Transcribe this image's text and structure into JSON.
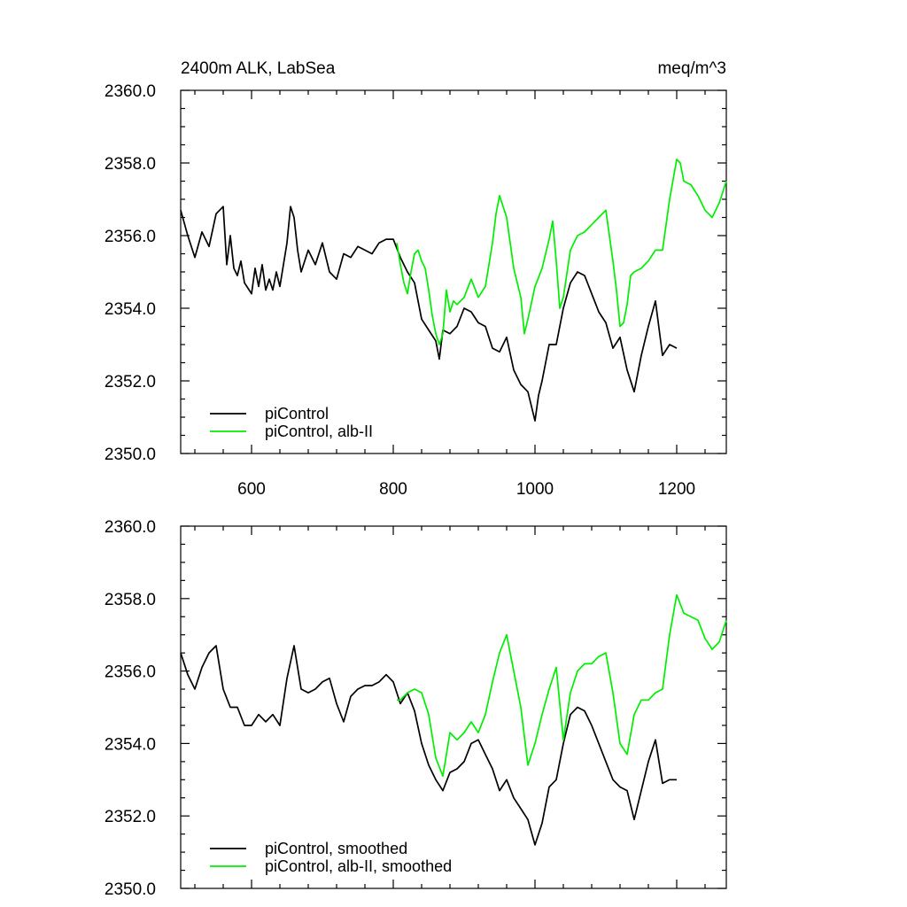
{
  "chart_data": [
    {
      "type": "line",
      "title_left": "2400m ALK, LabSea",
      "title_right": "meq/m^3",
      "xlim": [
        500,
        1270
      ],
      "ylim": [
        2350,
        2360
      ],
      "xticks": [
        600,
        800,
        1000,
        1200
      ],
      "xtick_labels": [
        "600",
        "800",
        "1000",
        "1200"
      ],
      "yticks": [
        2350,
        2352,
        2354,
        2356,
        2358,
        2360
      ],
      "ytick_labels": [
        "2350.0",
        "2352.0",
        "2354.0",
        "2356.0",
        "2358.0",
        "2360.0"
      ],
      "grid": false,
      "legend_position": "bottom-left",
      "series": [
        {
          "name": "piControl",
          "color": "#000000",
          "x": [
            500,
            510,
            520,
            530,
            540,
            550,
            560,
            565,
            570,
            575,
            580,
            585,
            590,
            600,
            605,
            610,
            615,
            620,
            625,
            630,
            635,
            640,
            650,
            655,
            660,
            665,
            670,
            680,
            690,
            700,
            710,
            720,
            730,
            740,
            750,
            760,
            770,
            780,
            790,
            800,
            810,
            820,
            830,
            840,
            850,
            860,
            865,
            870,
            880,
            890,
            900,
            910,
            920,
            930,
            940,
            950,
            960,
            970,
            980,
            990,
            1000,
            1005,
            1010,
            1020,
            1030,
            1040,
            1050,
            1060,
            1070,
            1080,
            1090,
            1100,
            1110,
            1120,
            1130,
            1140,
            1150,
            1160,
            1170,
            1180,
            1190,
            1200
          ],
          "values": [
            2356.7,
            2356.0,
            2355.4,
            2356.1,
            2355.7,
            2356.6,
            2356.8,
            2355.2,
            2356.0,
            2355.1,
            2354.9,
            2355.3,
            2354.7,
            2354.4,
            2355.1,
            2354.6,
            2355.2,
            2354.5,
            2354.8,
            2354.5,
            2355.0,
            2354.6,
            2355.8,
            2356.8,
            2356.5,
            2355.6,
            2355.0,
            2355.6,
            2355.2,
            2355.8,
            2355.0,
            2354.8,
            2355.5,
            2355.4,
            2355.7,
            2355.6,
            2355.5,
            2355.8,
            2355.9,
            2355.9,
            2355.4,
            2355.0,
            2354.7,
            2353.7,
            2353.4,
            2353.1,
            2352.6,
            2353.4,
            2353.3,
            2353.5,
            2354.0,
            2353.9,
            2353.6,
            2353.5,
            2352.9,
            2352.8,
            2353.2,
            2352.3,
            2351.9,
            2351.7,
            2350.9,
            2351.6,
            2352.0,
            2353.0,
            2353.0,
            2354.0,
            2354.7,
            2355.0,
            2354.9,
            2354.4,
            2353.9,
            2353.6,
            2352.9,
            2353.2,
            2352.3,
            2351.7,
            2352.7,
            2353.5,
            2354.2,
            2352.7,
            2353.0,
            2352.9
          ]
        },
        {
          "name": "piControl, alb-II",
          "color": "#00ee00",
          "x": [
            805,
            810,
            815,
            820,
            825,
            830,
            835,
            840,
            845,
            850,
            855,
            860,
            865,
            870,
            875,
            880,
            885,
            890,
            900,
            910,
            920,
            930,
            940,
            945,
            950,
            960,
            970,
            980,
            985,
            990,
            1000,
            1010,
            1020,
            1025,
            1030,
            1035,
            1040,
            1050,
            1060,
            1070,
            1080,
            1090,
            1100,
            1110,
            1115,
            1120,
            1125,
            1130,
            1135,
            1140,
            1150,
            1160,
            1170,
            1180,
            1190,
            1200,
            1205,
            1210,
            1220,
            1230,
            1240,
            1250,
            1260,
            1270
          ],
          "values": [
            2355.8,
            2355.2,
            2354.7,
            2354.4,
            2355.0,
            2355.5,
            2355.6,
            2355.3,
            2355.1,
            2354.5,
            2353.8,
            2353.3,
            2353.0,
            2353.3,
            2354.5,
            2353.9,
            2354.2,
            2354.1,
            2354.3,
            2354.8,
            2354.3,
            2354.6,
            2355.8,
            2356.6,
            2357.1,
            2356.5,
            2355.1,
            2354.3,
            2353.3,
            2353.7,
            2354.6,
            2355.1,
            2355.9,
            2356.4,
            2355.3,
            2354.0,
            2354.3,
            2355.6,
            2356.0,
            2356.1,
            2356.3,
            2356.5,
            2356.7,
            2355.3,
            2354.5,
            2353.5,
            2353.6,
            2354.1,
            2354.9,
            2355.0,
            2355.1,
            2355.3,
            2355.6,
            2355.6,
            2357.0,
            2358.1,
            2358.0,
            2357.5,
            2357.4,
            2357.1,
            2356.7,
            2356.5,
            2356.9,
            2357.5
          ]
        }
      ]
    },
    {
      "type": "line",
      "xlim": [
        500,
        1270
      ],
      "ylim": [
        2350,
        2360
      ],
      "xticks": [
        600,
        800,
        1000,
        1200
      ],
      "yticks": [
        2350,
        2352,
        2354,
        2356,
        2358,
        2360
      ],
      "ytick_labels": [
        "2350.0",
        "2352.0",
        "2354.0",
        "2356.0",
        "2358.0",
        "2360.0"
      ],
      "grid": false,
      "legend_position": "bottom-left",
      "series": [
        {
          "name": "piControl, smoothed",
          "color": "#000000",
          "x": [
            500,
            510,
            520,
            530,
            540,
            550,
            560,
            570,
            580,
            590,
            600,
            610,
            620,
            630,
            640,
            650,
            660,
            670,
            680,
            690,
            700,
            710,
            720,
            730,
            740,
            750,
            760,
            770,
            780,
            790,
            800,
            810,
            820,
            830,
            840,
            850,
            860,
            870,
            880,
            890,
            900,
            910,
            920,
            930,
            940,
            950,
            960,
            970,
            980,
            990,
            1000,
            1010,
            1020,
            1030,
            1040,
            1050,
            1060,
            1070,
            1080,
            1090,
            1100,
            1110,
            1120,
            1130,
            1140,
            1150,
            1160,
            1170,
            1180,
            1190,
            1200
          ],
          "values": [
            2356.5,
            2355.9,
            2355.5,
            2356.1,
            2356.5,
            2356.7,
            2355.5,
            2355.0,
            2355.0,
            2354.5,
            2354.5,
            2354.8,
            2354.6,
            2354.8,
            2354.5,
            2355.8,
            2356.7,
            2355.5,
            2355.4,
            2355.5,
            2355.7,
            2355.8,
            2355.1,
            2354.6,
            2355.3,
            2355.5,
            2355.6,
            2355.6,
            2355.7,
            2355.9,
            2355.7,
            2355.1,
            2355.4,
            2354.9,
            2354.0,
            2353.4,
            2353.0,
            2352.7,
            2353.2,
            2353.3,
            2353.5,
            2354.0,
            2354.1,
            2353.7,
            2353.3,
            2352.7,
            2353.0,
            2352.5,
            2352.2,
            2351.9,
            2351.2,
            2351.8,
            2352.8,
            2353.0,
            2354.0,
            2354.8,
            2355.0,
            2354.9,
            2354.5,
            2354.0,
            2353.5,
            2353.0,
            2352.8,
            2352.7,
            2351.9,
            2352.7,
            2353.5,
            2354.1,
            2352.9,
            2353.0,
            2353.0
          ]
        },
        {
          "name": "piControl, alb-II, smoothed",
          "color": "#00ee00",
          "x": [
            805,
            810,
            820,
            830,
            840,
            850,
            860,
            870,
            880,
            890,
            900,
            910,
            920,
            930,
            940,
            950,
            960,
            970,
            980,
            990,
            1000,
            1010,
            1020,
            1030,
            1040,
            1050,
            1060,
            1070,
            1080,
            1090,
            1100,
            1110,
            1120,
            1130,
            1140,
            1150,
            1160,
            1170,
            1180,
            1190,
            1200,
            1210,
            1220,
            1230,
            1240,
            1250,
            1260,
            1270
          ],
          "values": [
            2355.2,
            2355.2,
            2355.4,
            2355.5,
            2355.4,
            2354.8,
            2353.6,
            2353.1,
            2354.3,
            2354.1,
            2354.3,
            2354.6,
            2354.3,
            2354.8,
            2355.7,
            2356.5,
            2357.0,
            2356.0,
            2355.0,
            2353.4,
            2354.0,
            2354.8,
            2355.5,
            2356.1,
            2354.1,
            2355.4,
            2356.0,
            2356.2,
            2356.2,
            2356.4,
            2356.5,
            2355.4,
            2354.0,
            2353.7,
            2354.8,
            2355.2,
            2355.2,
            2355.4,
            2355.5,
            2357.0,
            2358.1,
            2357.6,
            2357.5,
            2357.4,
            2356.9,
            2356.6,
            2356.8,
            2357.4
          ]
        }
      ]
    }
  ]
}
